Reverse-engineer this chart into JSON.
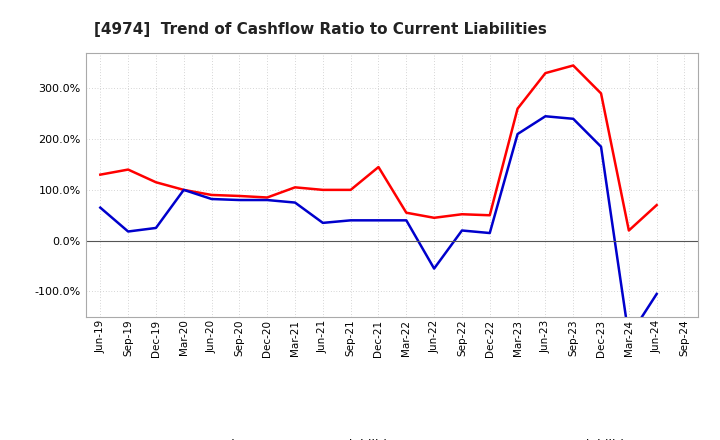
{
  "title": "[4974]  Trend of Cashflow Ratio to Current Liabilities",
  "x_labels": [
    "Jun-19",
    "Sep-19",
    "Dec-19",
    "Mar-20",
    "Jun-20",
    "Sep-20",
    "Dec-20",
    "Mar-21",
    "Jun-21",
    "Sep-21",
    "Dec-21",
    "Mar-22",
    "Jun-22",
    "Sep-22",
    "Dec-22",
    "Mar-23",
    "Jun-23",
    "Sep-23",
    "Dec-23",
    "Mar-24",
    "Jun-24",
    "Sep-24"
  ],
  "operating_cf": [
    130,
    140,
    115,
    100,
    90,
    88,
    85,
    105,
    100,
    100,
    145,
    55,
    45,
    52,
    50,
    260,
    330,
    345,
    290,
    20,
    70,
    null
  ],
  "free_cf": [
    65,
    18,
    25,
    100,
    82,
    80,
    80,
    75,
    35,
    40,
    40,
    40,
    -55,
    20,
    15,
    210,
    245,
    240,
    185,
    -190,
    -105,
    null
  ],
  "ylim": [
    -150,
    370
  ],
  "yticks": [
    -100,
    0,
    100,
    200,
    300
  ],
  "operating_color": "#ff0000",
  "free_color": "#0000cc",
  "background_color": "#ffffff",
  "grid_color": "#b0b0b0",
  "zero_line_color": "#555555",
  "legend_labels": [
    "Operating CF to Current Liabilities",
    "Free CF to Current Liabilities"
  ]
}
